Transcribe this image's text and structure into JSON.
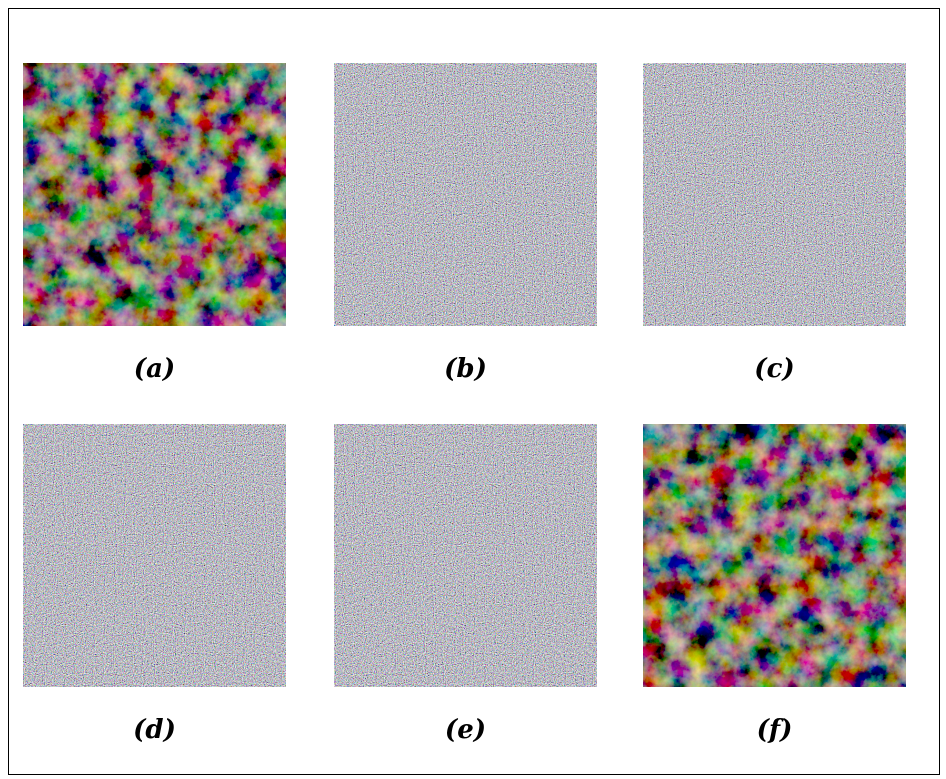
{
  "panels": [
    {
      "label": "(a)",
      "kind": "plain"
    },
    {
      "label": "(b)",
      "kind": "noise"
    },
    {
      "label": "(c)",
      "kind": "noise"
    },
    {
      "label": "(d)",
      "kind": "noise"
    },
    {
      "label": "(e)",
      "kind": "noise"
    },
    {
      "label": "(f)",
      "kind": "plain"
    }
  ]
}
